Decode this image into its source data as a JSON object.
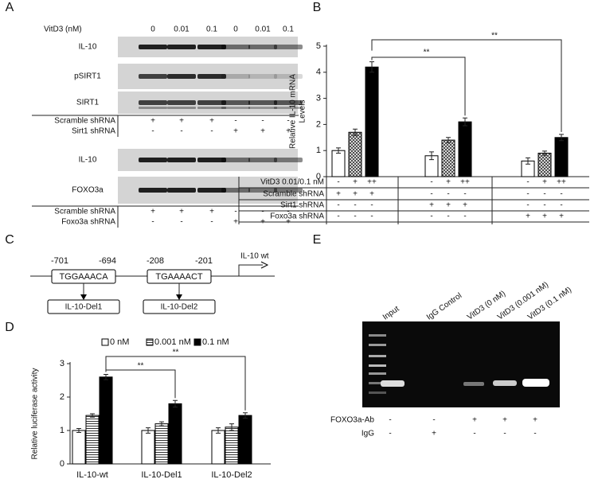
{
  "panel_labels": [
    "A",
    "B",
    "C",
    "D",
    "E"
  ],
  "blot": {
    "treatment_label": "VitD3 (nM)",
    "doses": [
      "0",
      "0.01",
      "0.1",
      "0",
      "0.01",
      "0.1"
    ],
    "set1": {
      "bands": [
        "IL-10",
        "pSIRT1",
        "SIRT1"
      ],
      "rows": [
        {
          "label": "Scramble shRNA",
          "signs": [
            "+",
            "+",
            "+",
            "-",
            "-",
            "-"
          ]
        },
        {
          "label": "Sirt1 shRNA",
          "signs": [
            "-",
            "-",
            "-",
            "+",
            "+",
            "+"
          ]
        }
      ]
    },
    "set2": {
      "bands": [
        "IL-10",
        "FOXO3a"
      ],
      "rows": [
        {
          "label": "Scramble shRNA",
          "signs": [
            "+",
            "+",
            "+",
            "-",
            "-",
            "-"
          ]
        },
        {
          "label": "Foxo3a shRNA",
          "signs": [
            "-",
            "-",
            "-",
            "+",
            "+",
            "+"
          ]
        }
      ]
    }
  },
  "chart_data": [
    {
      "type": "bar",
      "ylabel": [
        "Relative IL-10 mRNA",
        "Levels"
      ],
      "ylim": [
        0,
        5
      ],
      "yticks": [
        0,
        1,
        2,
        3,
        4,
        5
      ],
      "series": [
        {
          "color": "#ffffff",
          "values": [
            1.0,
            0.8,
            0.6
          ],
          "errors": [
            0.1,
            0.15,
            0.12
          ]
        },
        {
          "color": "#ffffff",
          "pattern": "crosshatch",
          "values": [
            1.7,
            1.4,
            0.9
          ],
          "errors": [
            0.12,
            0.1,
            0.08
          ]
        },
        {
          "color": "#000000",
          "values": [
            4.2,
            2.1,
            1.5
          ],
          "errors": [
            0.2,
            0.15,
            0.12
          ]
        }
      ],
      "annotations": [
        "**",
        "**"
      ],
      "conditions": [
        {
          "label": "VitD3 0.01/0.1 nM",
          "signs": [
            "-",
            "+",
            "++",
            "-",
            "+",
            "++",
            "-",
            "+",
            "++"
          ]
        },
        {
          "label": "Scramble shRNA",
          "signs": [
            "+",
            "+",
            "+",
            "-",
            "-",
            "-",
            "-",
            "-",
            "-"
          ]
        },
        {
          "label": "Sirt1 shRNA",
          "signs": [
            "-",
            "-",
            "-",
            "+",
            "+",
            "+",
            "-",
            "-",
            "-"
          ]
        },
        {
          "label": "Foxo3a shRNA",
          "signs": [
            "-",
            "-",
            "-",
            "-",
            "-",
            "-",
            "+",
            "+",
            "+"
          ]
        }
      ]
    },
    {
      "type": "bar",
      "ylabel": [
        "Relative  luciferase activity"
      ],
      "ylim": [
        0,
        3
      ],
      "yticks": [
        0,
        1,
        2,
        3
      ],
      "categories": [
        "IL-10-wt",
        "IL-10-Del1",
        "IL-10-Del2"
      ],
      "series": [
        {
          "name": "0 nM",
          "color": "#ffffff",
          "values": [
            1.0,
            1.0,
            1.0
          ],
          "errors": [
            0.06,
            0.08,
            0.08
          ]
        },
        {
          "name": "0.001 nM",
          "color": "#ffffff",
          "pattern": "stripes",
          "values": [
            1.45,
            1.2,
            1.1
          ],
          "errors": [
            0.05,
            0.06,
            0.1
          ]
        },
        {
          "name": "0.1 nM",
          "color": "#000000",
          "values": [
            2.6,
            1.8,
            1.45
          ],
          "errors": [
            0.08,
            0.1,
            0.08
          ]
        }
      ],
      "annotations": [
        "**",
        "**"
      ],
      "legend": "top"
    }
  ],
  "diagram": {
    "positions": [
      "-701",
      "-694",
      "-208",
      "-201"
    ],
    "gene": "IL-10 wt",
    "sites": [
      "TGGAAACA",
      "TGAAAACT"
    ],
    "mutants": [
      "IL-10-Del1",
      "IL-10-Del2"
    ]
  },
  "gel": {
    "lanes": [
      "Input",
      "IgG Control",
      "VitD3 (0 nM)",
      "VitD3 (0.001 nM)",
      "VitD3 (0.1 nM)"
    ],
    "rows": [
      {
        "label": "FOXO3a-Ab",
        "signs": [
          "-",
          "-",
          "+",
          "+",
          "+"
        ]
      },
      {
        "label": "IgG",
        "signs": [
          "-",
          "+",
          "-",
          "-",
          "-"
        ]
      }
    ]
  }
}
